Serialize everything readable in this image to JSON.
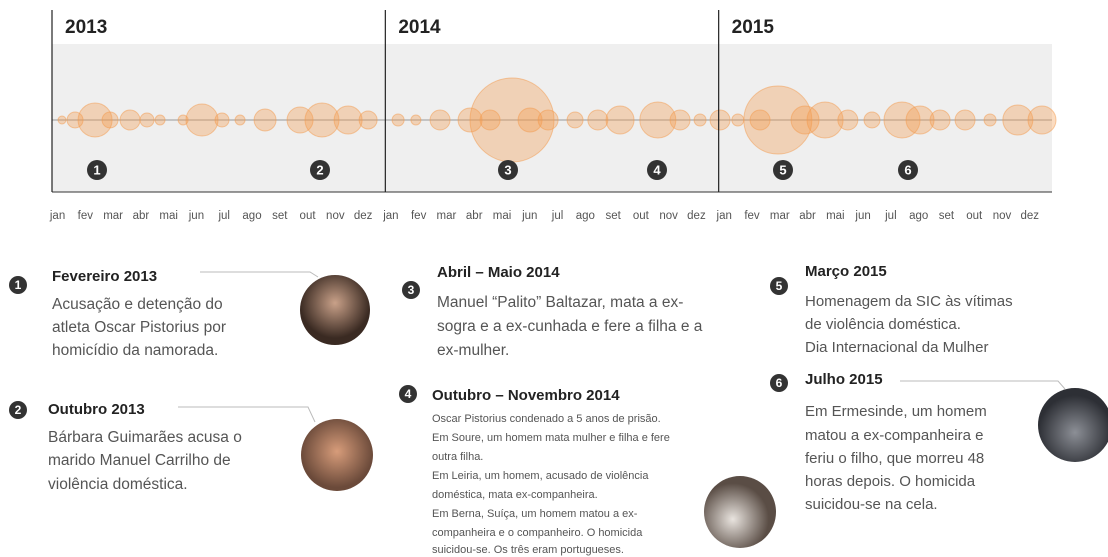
{
  "chart_data": {
    "type": "bubble-timeline",
    "years": [
      "2013",
      "2014",
      "2015"
    ],
    "months": [
      "jan",
      "fev",
      "mar",
      "abr",
      "mai",
      "jun",
      "jul",
      "ago",
      "set",
      "out",
      "nov",
      "dez",
      "jan",
      "fev",
      "mar",
      "abr",
      "mai",
      "jun",
      "jul",
      "ago",
      "set",
      "out",
      "nov",
      "dez",
      "jan",
      "fev",
      "mar",
      "abr",
      "mai",
      "jun",
      "jul",
      "ago",
      "set",
      "out",
      "nov",
      "dez"
    ],
    "xlim": [
      0,
      36
    ],
    "color": "#f39a4c",
    "x": [
      0.36,
      0.83,
      1.55,
      2.09,
      2.81,
      3.42,
      3.89,
      4.72,
      5.4,
      6.12,
      6.77,
      7.67,
      8.93,
      9.72,
      10.66,
      11.38,
      12.46,
      13.1,
      13.97,
      15.05,
      15.77,
      16.56,
      17.21,
      17.86,
      18.83,
      19.65,
      20.45,
      21.81,
      22.61,
      23.33,
      24.05,
      24.69,
      25.49,
      26.13,
      27.11,
      27.83,
      28.65,
      29.52,
      30.6,
      31.25,
      31.97,
      32.87,
      33.77,
      34.77,
      35.64
    ],
    "size": [
      4,
      8,
      17,
      8,
      10,
      7,
      5,
      5,
      16,
      7,
      5,
      11,
      13,
      17,
      14,
      9,
      6,
      5,
      10,
      12,
      10,
      42,
      12,
      10,
      8,
      10,
      14,
      18,
      10,
      6,
      10,
      6,
      10,
      34,
      14,
      18,
      10,
      8,
      18,
      14,
      10,
      10,
      6,
      15,
      14
    ]
  },
  "markers": [
    "1",
    "2",
    "3",
    "4",
    "5",
    "6"
  ],
  "sections": [
    {
      "title": "Fevereiro 2013",
      "lines": [
        "Acusação e detenção do",
        "atleta Oscar Pistorius por",
        "homicídio da namorada."
      ]
    },
    {
      "title": "Outubro 2013",
      "lines": [
        "Bárbara Guimarães acusa o",
        "marido Manuel Carrilho de",
        "violência doméstica."
      ]
    },
    {
      "title": "Abril – Maio  2014",
      "lines": [
        "Manuel “Palito” Baltazar, mata a ex-",
        "sogra e a ex-cunhada e fere a filha e a",
        "ex-mulher."
      ]
    },
    {
      "title": "Outubro – Novembro 2014",
      "lines": [
        "Oscar Pistorius condenado a 5 anos de prisão.",
        "Em Soure, um homem mata mulher e filha e fere",
        "outra filha.",
        "Em Leiria, um homem, acusado de violência",
        "doméstica, mata ex-companheira.",
        "Em Berna, Suíça, um homem matou a ex-",
        "companheira e o companheiro. O homicida",
        "suicidou-se. Os três eram portugueses."
      ]
    },
    {
      "title": "Março 2015",
      "lines": [
        "Homenagem da SIC  às vítimas",
        "de violência doméstica.",
        "Dia Internacional da Mulher"
      ]
    },
    {
      "title": "Julho 2015",
      "lines": [
        "Em Ermesinde, um homem",
        "matou a ex-companheira e",
        "feriu o filho, que morreu  48",
        "horas depois. O homicida",
        "suicidou-se na cela."
      ]
    }
  ]
}
